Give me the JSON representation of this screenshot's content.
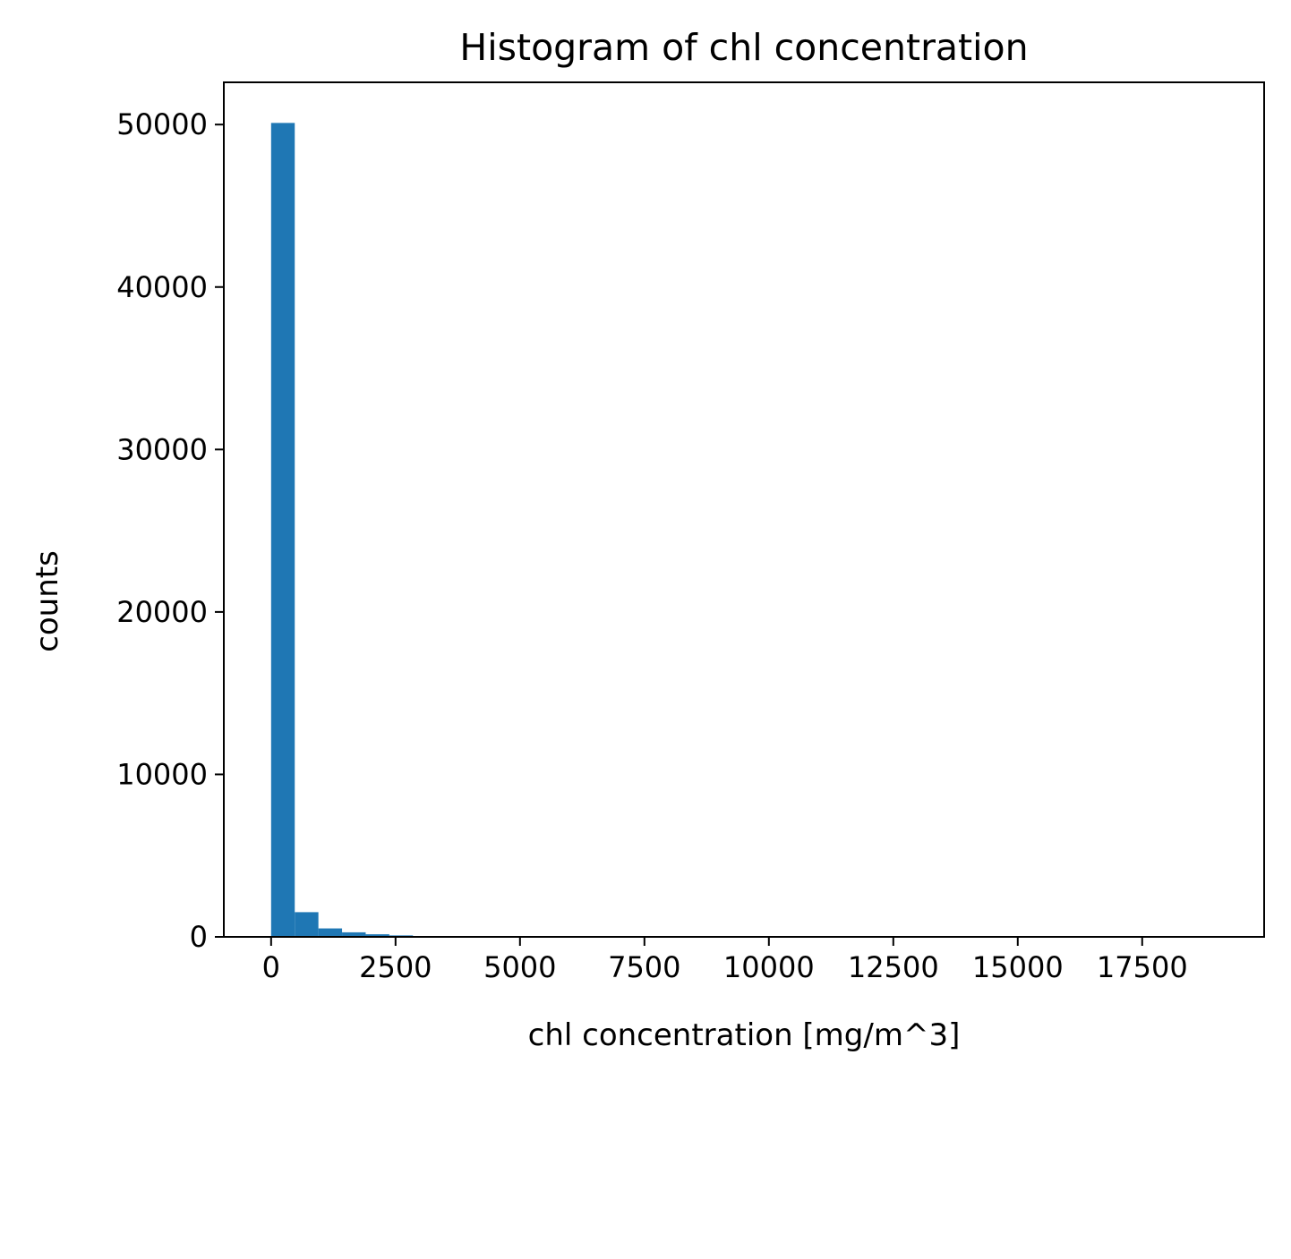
{
  "chart_data": {
    "type": "bar",
    "title": "Histogram of chl concentration",
    "xlabel": "chl concentration [mg/m^3]",
    "ylabel": "counts",
    "bar_color": "#1f77b4",
    "xlim": [
      -950,
      19950
    ],
    "ylim": [
      0,
      52600
    ],
    "xticks": [
      0,
      2500,
      5000,
      7500,
      10000,
      12500,
      15000,
      17500
    ],
    "xtick_labels": [
      "0",
      "2500",
      "5000",
      "7500",
      "10000",
      "12500",
      "15000",
      "17500"
    ],
    "yticks": [
      0,
      10000,
      20000,
      30000,
      40000,
      50000
    ],
    "ytick_labels": [
      "0",
      "10000",
      "20000",
      "30000",
      "40000",
      "50000"
    ],
    "grid": false,
    "bins": [
      {
        "x0": 0,
        "x1": 475,
        "count": 50100
      },
      {
        "x0": 475,
        "x1": 950,
        "count": 1520
      },
      {
        "x0": 950,
        "x1": 1425,
        "count": 520
      },
      {
        "x0": 1425,
        "x1": 1900,
        "count": 280
      },
      {
        "x0": 1900,
        "x1": 2375,
        "count": 160
      },
      {
        "x0": 2375,
        "x1": 2850,
        "count": 90
      },
      {
        "x0": 2850,
        "x1": 3325,
        "count": 55
      },
      {
        "x0": 3325,
        "x1": 3800,
        "count": 35
      },
      {
        "x0": 3800,
        "x1": 4275,
        "count": 25
      },
      {
        "x0": 4275,
        "x1": 4750,
        "count": 18
      },
      {
        "x0": 4750,
        "x1": 5225,
        "count": 12
      },
      {
        "x0": 5225,
        "x1": 5700,
        "count": 9
      },
      {
        "x0": 5700,
        "x1": 6175,
        "count": 7
      },
      {
        "x0": 6175,
        "x1": 6650,
        "count": 5
      },
      {
        "x0": 6650,
        "x1": 7125,
        "count": 4
      },
      {
        "x0": 7125,
        "x1": 7600,
        "count": 3
      },
      {
        "x0": 7600,
        "x1": 8075,
        "count": 3
      },
      {
        "x0": 8075,
        "x1": 8550,
        "count": 2
      },
      {
        "x0": 8550,
        "x1": 9025,
        "count": 2
      },
      {
        "x0": 9025,
        "x1": 9500,
        "count": 1
      },
      {
        "x0": 9500,
        "x1": 9975,
        "count": 1
      },
      {
        "x0": 9975,
        "x1": 10450,
        "count": 1
      },
      {
        "x0": 10450,
        "x1": 10925,
        "count": 1
      },
      {
        "x0": 10925,
        "x1": 11400,
        "count": 1
      },
      {
        "x0": 11400,
        "x1": 11875,
        "count": 0
      },
      {
        "x0": 11875,
        "x1": 12350,
        "count": 1
      },
      {
        "x0": 12350,
        "x1": 12825,
        "count": 0
      },
      {
        "x0": 12825,
        "x1": 13300,
        "count": 0
      },
      {
        "x0": 13300,
        "x1": 13775,
        "count": 1
      },
      {
        "x0": 13775,
        "x1": 14250,
        "count": 0
      },
      {
        "x0": 14250,
        "x1": 14725,
        "count": 0
      },
      {
        "x0": 14725,
        "x1": 15200,
        "count": 0
      },
      {
        "x0": 15200,
        "x1": 15675,
        "count": 0
      },
      {
        "x0": 15675,
        "x1": 16150,
        "count": 0
      },
      {
        "x0": 16150,
        "x1": 16625,
        "count": 0
      },
      {
        "x0": 16625,
        "x1": 17100,
        "count": 0
      },
      {
        "x0": 17100,
        "x1": 17575,
        "count": 0
      },
      {
        "x0": 17575,
        "x1": 18050,
        "count": 0
      },
      {
        "x0": 18050,
        "x1": 18525,
        "count": 0
      },
      {
        "x0": 18525,
        "x1": 19000,
        "count": 1
      }
    ]
  }
}
